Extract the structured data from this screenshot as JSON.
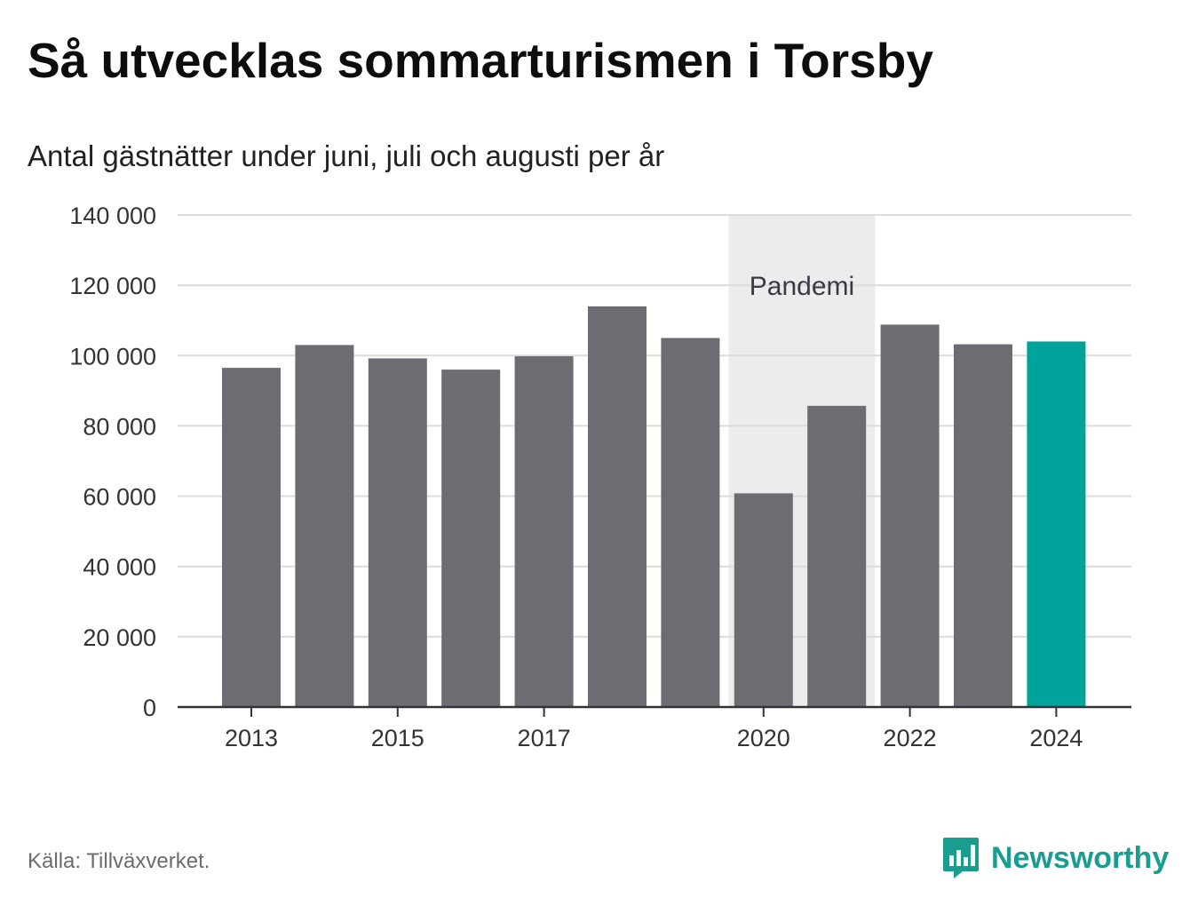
{
  "title": "Så utvecklas sommarturismen i Torsby",
  "subtitle": "Antal gästnätter under juni, juli och augusti per år",
  "source": "Källa: Tillväxverket.",
  "brand": "Newsworthy",
  "colors": {
    "bar": "#6d6c72",
    "highlight": "#00a39a",
    "shade": "#ececec",
    "grid": "#dcdcdc",
    "axis": "#333333",
    "text": "#333333",
    "brand": "#1a9c8f"
  },
  "chart_data": {
    "type": "bar",
    "categories": [
      "2013",
      "2014",
      "2015",
      "2016",
      "2017",
      "2018",
      "2019",
      "2020",
      "2021",
      "2022",
      "2023",
      "2024"
    ],
    "values": [
      96500,
      103000,
      99200,
      96000,
      99800,
      114000,
      105000,
      60800,
      85700,
      108800,
      103200,
      104000
    ],
    "highlight_category": "2024",
    "x_tick_labels": [
      "2013",
      "2015",
      "2017",
      "2020",
      "2022",
      "2024"
    ],
    "y_ticks": [
      0,
      20000,
      40000,
      60000,
      80000,
      100000,
      120000,
      140000
    ],
    "y_tick_labels": [
      "0",
      "20 000",
      "40 000",
      "60 000",
      "80 000",
      "100 000",
      "120 000",
      "140 000"
    ],
    "ylim": [
      0,
      140000
    ],
    "grid": true,
    "annotation": {
      "label": "Pandemi",
      "from": "2020",
      "to": "2021"
    }
  }
}
